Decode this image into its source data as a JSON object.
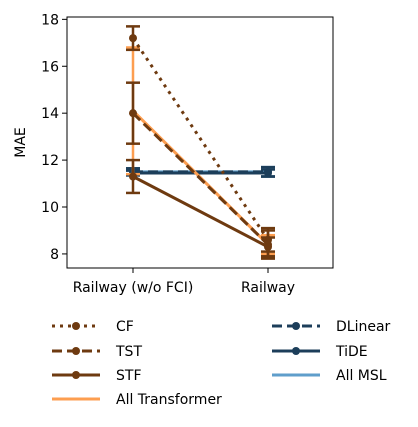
{
  "chart_data": {
    "type": "line",
    "categories": [
      "Railway (w/o FCI)",
      "Railway"
    ],
    "ylabel": "MAE",
    "xlabel": "",
    "ylim": [
      7.4,
      18.1
    ],
    "yticks": [
      8,
      10,
      12,
      14,
      16,
      18
    ],
    "grid": false,
    "legend_placement": "below",
    "series": [
      {
        "name": "CF",
        "values": [
          17.2,
          8.6
        ],
        "error": [
          0.5,
          0.5
        ],
        "color": "#6e3a10",
        "style": "dotted",
        "marker": true
      },
      {
        "name": "TST",
        "values": [
          14.0,
          8.4
        ],
        "error": [
          1.3,
          0.6
        ],
        "color": "#6e3a10",
        "style": "dashed",
        "marker": true
      },
      {
        "name": "STF",
        "values": [
          11.3,
          8.3
        ],
        "error": [
          0.7,
          0.4
        ],
        "color": "#6e3a10",
        "style": "solid",
        "marker": true
      },
      {
        "name": "All Transformer",
        "values": [
          14.1,
          8.4
        ],
        "error": [
          2.7,
          0.4
        ],
        "color": "#fd9e50",
        "style": "solid",
        "marker": false
      },
      {
        "name": "DLinear",
        "values": [
          11.5,
          11.5
        ],
        "error": [
          0.15,
          0.2
        ],
        "color": "#1c3e5a",
        "style": "dashed",
        "marker": true
      },
      {
        "name": "TiDE",
        "values": [
          11.45,
          11.45
        ],
        "error": [
          0.1,
          0.15
        ],
        "color": "#1c3e5a",
        "style": "solid",
        "marker": true
      },
      {
        "name": "All MSL",
        "values": [
          11.5,
          11.5
        ],
        "error": [
          0.15,
          0.2
        ],
        "color": "#5f9ecb",
        "style": "solid",
        "marker": false
      }
    ]
  }
}
